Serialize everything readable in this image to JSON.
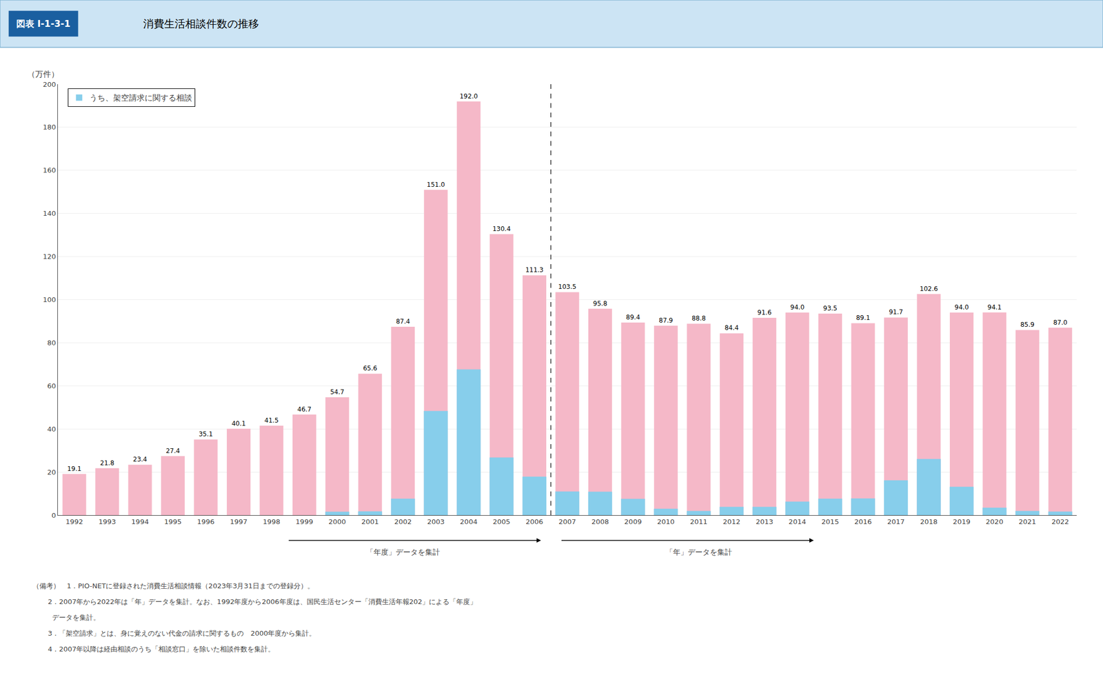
{
  "chart_data": {
    "type": "bar",
    "title": "消費生活相談件数の推移",
    "header_label": "図表 I-1-3-1",
    "ylabel": "（万件）",
    "categories": [
      "1992",
      "1993",
      "1994",
      "1995",
      "1996",
      "1997",
      "1998",
      "1999",
      "2000",
      "2001",
      "2002",
      "2003",
      "2004",
      "2005",
      "2006",
      "2007",
      "2008",
      "2009",
      "2010",
      "2011",
      "2012",
      "2013",
      "2014",
      "2015",
      "2016",
      "2017",
      "2018",
      "2019",
      "2020",
      "2021",
      "2022"
    ],
    "series": [
      {
        "color": "#f5b8c8",
        "data_labels": true,
        "values": [
          19.1,
          21.8,
          23.4,
          27.4,
          35.1,
          40.1,
          41.5,
          46.7,
          54.7,
          65.6,
          87.4,
          151.0,
          192.0,
          130.4,
          111.3,
          103.5,
          95.8,
          89.4,
          87.9,
          88.8,
          84.4,
          91.6,
          94.0,
          93.5,
          89.1,
          91.7,
          102.6,
          94.0,
          94.1,
          85.9,
          87.0
        ],
        "value_labels": [
          "19.1",
          "21.8",
          "23.4",
          "27.4",
          "35.1",
          "40.1",
          "41.5",
          "46.7",
          "54.7",
          "65.6",
          "87.4",
          "151.0",
          "192.0",
          "130.4",
          "111.3",
          "103.5",
          "95.8",
          "89.4",
          "87.9",
          "88.8",
          "84.4",
          "91.6",
          "94.0",
          "93.5",
          "89.1",
          "91.7",
          "102.6",
          "94.0",
          "94.1",
          "85.9",
          "87.0"
        ]
      },
      {
        "name": "うち、架空請求に関する相談",
        "color": "#87ceeb",
        "values": [
          0,
          0,
          0,
          0,
          0,
          0,
          0,
          0,
          1.5,
          1.7,
          7.6,
          48.3,
          67.6,
          26.7,
          17.8,
          10.9,
          10.8,
          7.5,
          2.9,
          1.9,
          3.8,
          3.8,
          6.2,
          7.6,
          7.7,
          16.1,
          26.0,
          13.1,
          3.4,
          1.9,
          1.6
        ]
      }
    ],
    "stacked": false,
    "ylim": [
      0,
      200
    ],
    "yticks": [
      0,
      20,
      40,
      60,
      80,
      100,
      120,
      140,
      160,
      180,
      200
    ],
    "grid": true,
    "legend": "upper left",
    "divider": {
      "after": "2006",
      "left_label": "「年度」データを集計",
      "right_label": "「年」データを集計"
    },
    "notes": [
      "（備考）　1．PIO-NETに登録された消費生活相談情報（2023年3月31日までの登録分）。",
      "       2．2007年から2022年は「年」データを集計。なお、1992年度から2006年度は、国民生活センター「消費生活年報202」による「年度」",
      "         データを集計。",
      "       3．「架空請求」とは、身に覚えのない代金の請求に関するもの　2000年度から集計。",
      "       4．2007年以降は経由相談のうち「相談窓口」を除いた相談件数を集計。"
    ]
  }
}
